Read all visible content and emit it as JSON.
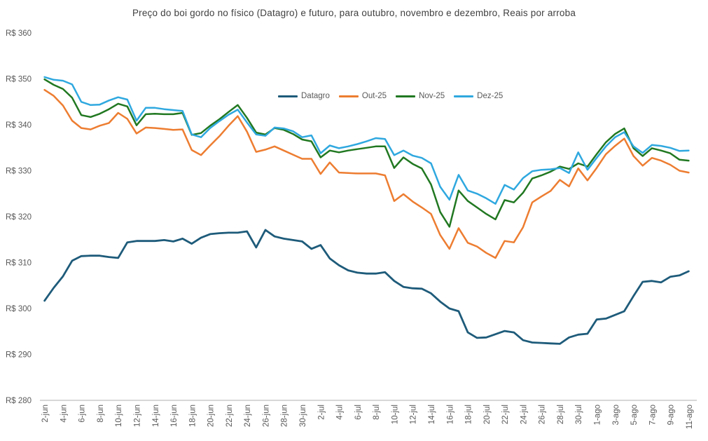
{
  "title": "Preço do boi gordo no físico (Datagro) e futuro, para outubro, novembro e dezembro, Reais por arroba",
  "chart_data": {
    "type": "line",
    "title": "Preço do boi gordo no físico (Datagro) e futuro, para outubro, novembro e dezembro, Reais por arroba",
    "unit": "Reais por arroba",
    "grid": false,
    "background": "#FFFFFF",
    "legend_position": "top-center",
    "axis_line_color": "#BFBFBF",
    "label_color": "#595959",
    "y_axis": {
      "min": 280,
      "max": 360,
      "step": 10,
      "tick_labels": [
        "R$ 360",
        "R$ 350",
        "R$ 340",
        "R$ 330",
        "R$ 320",
        "R$ 310",
        "R$ 300",
        "R$ 290",
        "R$ 280"
      ]
    },
    "x_tick_every": 2,
    "x": [
      "2-jun",
      "3-jun",
      "4-jun",
      "5-jun",
      "6-jun",
      "7-jun",
      "8-jun",
      "9-jun",
      "10-jun",
      "11-jun",
      "12-jun",
      "13-jun",
      "14-jun",
      "15-jun",
      "16-jun",
      "17-jun",
      "18-jun",
      "19-jun",
      "20-jun",
      "21-jun",
      "22-jun",
      "23-jun",
      "24-jun",
      "25-jun",
      "26-jun",
      "27-jun",
      "28-jun",
      "29-jun",
      "30-jun",
      "1-jul",
      "2-jul",
      "3-jul",
      "4-jul",
      "5-jul",
      "6-jul",
      "7-jul",
      "8-jul",
      "9-jul",
      "10-jul",
      "11-jul",
      "12-jul",
      "13-jul",
      "14-jul",
      "15-jul",
      "16-jul",
      "17-jul",
      "18-jul",
      "19-jul",
      "20-jul",
      "21-jul",
      "22-jul",
      "23-jul",
      "24-jul",
      "25-jul",
      "26-jul",
      "27-jul",
      "28-jul",
      "29-jul",
      "30-jul",
      "31-jul",
      "1-ago",
      "2-ago",
      "3-ago",
      "4-ago",
      "5-ago",
      "6-ago",
      "7-ago",
      "8-ago",
      "9-ago",
      "10-ago",
      "11-ago"
    ],
    "series": [
      {
        "name": "Datagro",
        "color": "#1E5B7A",
        "values": [
          301.7,
          304.5,
          307.0,
          310.4,
          311.4,
          311.5,
          311.5,
          311.2,
          311.0,
          314.4,
          314.7,
          314.7,
          314.7,
          314.9,
          314.6,
          315.2,
          314.1,
          315.4,
          316.2,
          316.4,
          316.5,
          316.5,
          316.8,
          313.3,
          317.1,
          315.7,
          315.2,
          314.9,
          314.6,
          313.0,
          313.8,
          310.9,
          309.4,
          308.3,
          307.8,
          307.6,
          307.6,
          307.9,
          306.0,
          304.7,
          304.4,
          304.3,
          303.3,
          301.5,
          300.0,
          299.4,
          294.8,
          293.6,
          293.7,
          294.4,
          295.1,
          294.8,
          293.1,
          292.6,
          292.5,
          292.4,
          292.3,
          293.7,
          294.3,
          294.5,
          297.6,
          297.8,
          298.6,
          299.4,
          302.7,
          305.8,
          306.0,
          305.7,
          306.9,
          307.2,
          308.1
        ]
      },
      {
        "name": "Out-25",
        "color": "#ED7D31",
        "values": [
          347.6,
          346.3,
          344.2,
          340.9,
          339.3,
          339.0,
          339.8,
          340.4,
          342.6,
          341.3,
          338.1,
          339.4,
          339.3,
          339.1,
          338.9,
          339.0,
          334.5,
          333.4,
          335.5,
          337.5,
          339.8,
          341.9,
          338.5,
          334.1,
          334.6,
          335.3,
          334.4,
          333.5,
          332.6,
          332.6,
          329.3,
          331.8,
          329.6,
          329.5,
          329.4,
          329.4,
          329.4,
          329.0,
          323.4,
          324.9,
          323.3,
          322.0,
          320.6,
          316.0,
          313.0,
          317.5,
          314.3,
          313.5,
          312.1,
          311.0,
          314.7,
          314.4,
          317.7,
          323.1,
          324.4,
          325.6,
          328.0,
          326.6,
          330.5,
          327.9,
          330.6,
          333.6,
          335.4,
          337.0,
          333.2,
          331.1,
          332.8,
          332.2,
          331.3,
          330.0,
          329.6
        ]
      },
      {
        "name": "Nov-25",
        "color": "#217821",
        "values": [
          349.9,
          348.7,
          347.8,
          345.9,
          342.1,
          341.7,
          342.4,
          343.4,
          344.6,
          344.0,
          339.9,
          342.3,
          342.4,
          342.3,
          342.3,
          342.6,
          337.8,
          338.2,
          339.8,
          341.2,
          342.8,
          344.3,
          341.5,
          338.3,
          337.9,
          339.3,
          338.9,
          338.0,
          336.8,
          336.4,
          332.9,
          334.4,
          334.0,
          334.4,
          334.7,
          335.0,
          335.3,
          335.3,
          330.6,
          332.9,
          331.5,
          330.5,
          327.0,
          321.0,
          317.8,
          325.7,
          323.4,
          322.0,
          320.6,
          319.4,
          323.6,
          323.1,
          325.2,
          328.3,
          329.0,
          329.8,
          330.9,
          330.4,
          331.6,
          330.9,
          333.6,
          336.2,
          338.0,
          339.2,
          334.9,
          333.2,
          334.9,
          334.4,
          333.8,
          332.4,
          332.2
        ]
      },
      {
        "name": "Dez-25",
        "color": "#2FA8DF",
        "values": [
          350.4,
          349.8,
          349.6,
          348.8,
          345.0,
          344.3,
          344.4,
          345.3,
          346.0,
          345.5,
          340.9,
          343.7,
          343.7,
          343.4,
          343.2,
          343.0,
          337.9,
          337.3,
          339.3,
          340.8,
          342.2,
          343.3,
          340.5,
          337.9,
          337.6,
          339.4,
          339.2,
          338.6,
          337.3,
          337.7,
          333.8,
          335.5,
          334.9,
          335.3,
          335.8,
          336.4,
          337.1,
          336.9,
          333.4,
          334.4,
          333.3,
          332.8,
          331.6,
          326.5,
          323.7,
          329.1,
          325.7,
          325.0,
          324.0,
          322.8,
          326.9,
          325.9,
          328.4,
          329.9,
          330.2,
          330.3,
          330.6,
          329.5,
          334.0,
          330.2,
          332.8,
          335.3,
          337.3,
          338.4,
          335.3,
          333.9,
          335.6,
          335.4,
          335.0,
          334.3,
          334.4
        ]
      }
    ]
  }
}
